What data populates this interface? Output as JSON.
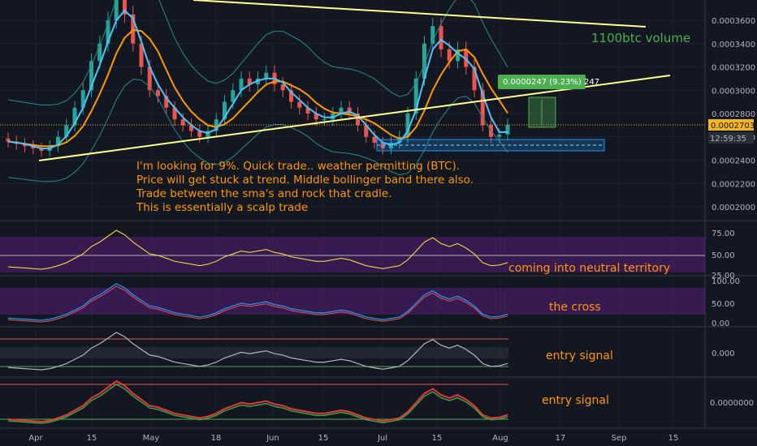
{
  "chart_data": {
    "type": "candlestick",
    "price_axis": {
      "ticks": [
        "0.0003600",
        "0.0003400",
        "0.0003200",
        "0.0003000",
        "0.0002800",
        "0.0002600",
        "0.0002400",
        "0.0002200",
        "0.0002000"
      ],
      "current_price": "0.0002703",
      "countdown": "12:59:35"
    },
    "x_axis": {
      "ticks": [
        "Apr",
        "15",
        "May",
        "18",
        "Jun",
        "15",
        "Jul",
        "15",
        "Aug",
        "17",
        "Sep",
        "15"
      ]
    },
    "annotations": {
      "volume_note": "1100btc volume",
      "measure_label": "0.0000247 (9.23%) 247",
      "main_note": [
        "I'm looking for 9%. Quick trade.. weather permitting (BTC).",
        "Price will get stuck at trend. Middle bollinger band there also.",
        "Trade between the sma's and rock that cradle.",
        "This is essentially a scalp trade"
      ],
      "rsi_note": "coming into neutral territory",
      "stoch_note": "the cross",
      "osc1_note": "entry signal",
      "osc2_note": "entry signal"
    },
    "rsi_axis": [
      "75.00",
      "50.00",
      "25.00"
    ],
    "stoch_axis": [
      "100.00",
      "50.00",
      "0.00"
    ],
    "osc1_axis": [
      "0.000"
    ],
    "osc2_axis": [
      "0.0000000"
    ],
    "candles_close": [
      0.000256,
      0.000254,
      0.000252,
      0.00025,
      0.000248,
      0.000252,
      0.00026,
      0.00027,
      0.000285,
      0.0003,
      0.000325,
      0.00034,
      0.00036,
      0.00038,
      0.000365,
      0.00034,
      0.00032,
      0.0003,
      0.000295,
      0.000285,
      0.000275,
      0.00027,
      0.000265,
      0.00026,
      0.000265,
      0.000275,
      0.00029,
      0.0003,
      0.00031,
      0.000305,
      0.00031,
      0.000315,
      0.000305,
      0.0003,
      0.00029,
      0.000285,
      0.00028,
      0.000275,
      0.000275,
      0.00028,
      0.000285,
      0.00028,
      0.00027,
      0.00026,
      0.000255,
      0.00025,
      0.000255,
      0.00026,
      0.00028,
      0.00031,
      0.00034,
      0.000355,
      0.000335,
      0.000325,
      0.000335,
      0.00032,
      0.0003,
      0.00027,
      0.00026,
      0.000262,
      0.0002703
    ],
    "colors": {
      "bull": "#26a69a",
      "bear": "#ef5350",
      "sma_fast": "#4fc3f7",
      "sma_slow": "#ff9800",
      "trendline": "#ffff8d",
      "note": "#ff9800",
      "volume_note": "#4caf50",
      "band_fill": "#7b1fa2"
    }
  }
}
